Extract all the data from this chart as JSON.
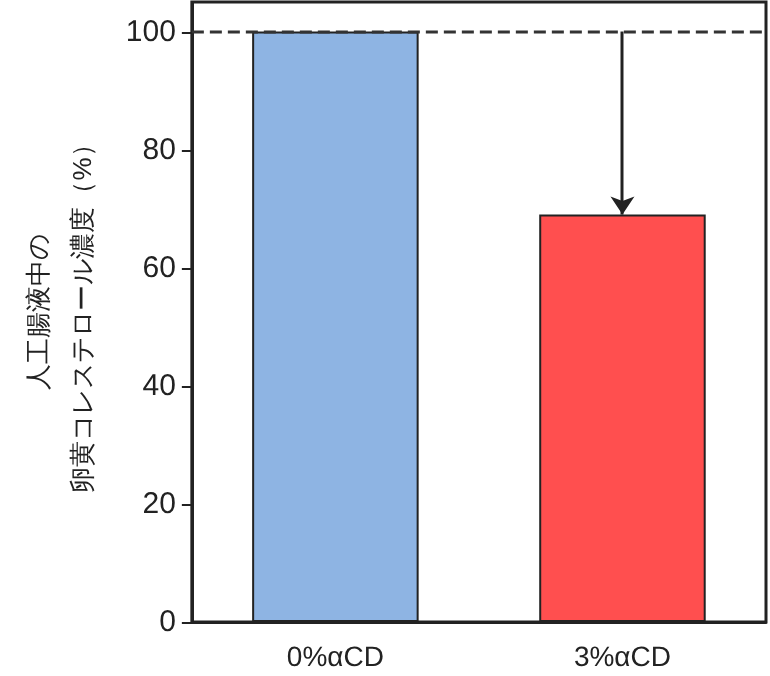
{
  "chart_data": {
    "type": "bar",
    "ylabel": [
      "人工腸液中の",
      "卵黄コレステロール濃度（%）"
    ],
    "categories": [
      "0%αCD",
      "3%αCD"
    ],
    "values": [
      100,
      69
    ],
    "colors": [
      "#8eb4e3",
      "#ff4f4f"
    ],
    "ylim": [
      0,
      105
    ],
    "yticks": [
      0,
      20,
      40,
      60,
      80,
      100
    ],
    "grid": false,
    "ref_lines": [
      {
        "axis": "y",
        "value": 100,
        "line_style": "dashed",
        "color": "#333333"
      }
    ]
  }
}
